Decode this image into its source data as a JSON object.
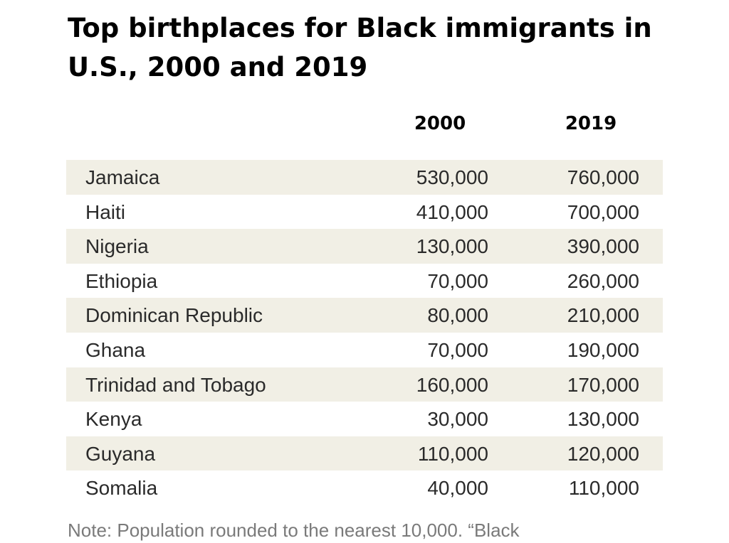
{
  "chart_data": {
    "type": "table",
    "title": "Top birthplaces for Black immigrants in U.S., 2000 and 2019",
    "columns": [
      "",
      "2000",
      "2019"
    ],
    "rows": [
      {
        "country": "Jamaica",
        "y2000": "530,000",
        "y2019": "760,000"
      },
      {
        "country": "Haiti",
        "y2000": "410,000",
        "y2019": "700,000"
      },
      {
        "country": "Nigeria",
        "y2000": "130,000",
        "y2019": "390,000"
      },
      {
        "country": "Ethiopia",
        "y2000": "70,000",
        "y2019": "260,000"
      },
      {
        "country": "Dominican Republic",
        "y2000": "80,000",
        "y2019": "210,000"
      },
      {
        "country": "Ghana",
        "y2000": "70,000",
        "y2019": "190,000"
      },
      {
        "country": "Trinidad and Tobago",
        "y2000": "160,000",
        "y2019": "170,000"
      },
      {
        "country": "Kenya",
        "y2000": "30,000",
        "y2019": "130,000"
      },
      {
        "country": "Guyana",
        "y2000": "110,000",
        "y2019": "120,000"
      },
      {
        "country": "Somalia",
        "y2000": "40,000",
        "y2019": "110,000"
      }
    ],
    "note": "Note: Population rounded to the nearest 10,000. “Black"
  },
  "colors": {
    "row_shade": "#f1efe5",
    "text": "#2a2a2a",
    "title": "#000000",
    "note": "#7a7a7a"
  }
}
